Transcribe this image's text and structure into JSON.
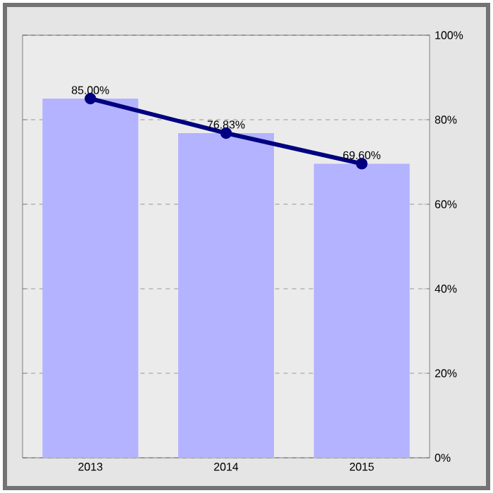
{
  "chart_data": {
    "type": "bar",
    "categories": [
      "2013",
      "2014",
      "2015"
    ],
    "series": [
      {
        "color": "#b3b3ff",
        "values": [
          85.0,
          76.83,
          69.6
        ]
      },
      {
        "type": "line",
        "color": "#000080",
        "marker": "circle",
        "values": [
          85.0,
          76.83,
          69.6
        ],
        "value_labels": [
          "85.00%",
          "76.83%",
          "69.60%"
        ]
      }
    ],
    "ylim": [
      0,
      100
    ],
    "yticks": [
      {
        "value": 0,
        "label": "0%"
      },
      {
        "value": 20,
        "label": "20%"
      },
      {
        "value": 40,
        "label": "40%"
      },
      {
        "value": 60,
        "label": "60%"
      },
      {
        "value": 80,
        "label": "80%"
      },
      {
        "value": 100,
        "label": "100%"
      }
    ],
    "grid": "y"
  }
}
